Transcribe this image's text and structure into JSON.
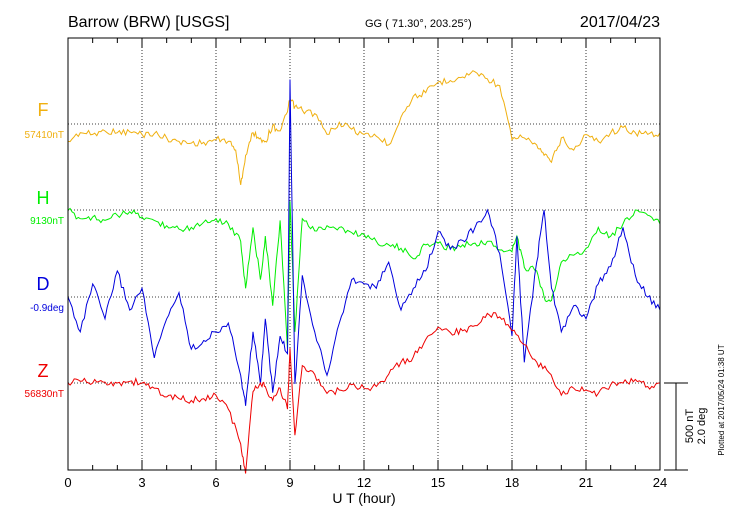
{
  "header": {
    "station": "Barrow (BRW)  [USGS]",
    "coords": "GG ( 71.30°, 203.25°)",
    "date": "2017/04/23"
  },
  "chart_data": {
    "type": "line",
    "xlabel": "U T (hour)",
    "xlim": [
      0,
      24
    ],
    "x_ticks": [
      "0",
      "3",
      "6",
      "9",
      "12",
      "15",
      "18",
      "21",
      "24"
    ],
    "grid": true,
    "scale_text": [
      "500 nT",
      "2.0 deg"
    ],
    "plotted_note": "Plotted at 2017/05/24 01:38 UT",
    "colors": {
      "F": "#f0b010",
      "H": "#00ee00",
      "D": "#0000dd",
      "Z": "#ee0000"
    },
    "series": [
      {
        "name": "F",
        "baseline": "57410nT",
        "x": [
          0,
          0.5,
          1,
          1.5,
          2,
          2.5,
          3,
          3.5,
          4,
          4.5,
          5,
          5.5,
          6,
          6.5,
          6.8,
          7,
          7.2,
          7.5,
          7.8,
          8,
          8.3,
          8.6,
          8.9,
          9,
          9.2,
          9.5,
          10,
          10.5,
          11,
          11.5,
          12,
          12.5,
          13,
          13.5,
          14,
          14.5,
          15,
          15.5,
          16,
          16.5,
          17,
          17.5,
          18,
          18.5,
          19,
          19.3,
          19.6,
          20,
          20.5,
          21,
          21.5,
          22,
          22.5,
          23,
          23.5,
          24
        ],
        "values": [
          -100,
          -50,
          -60,
          -40,
          -50,
          -45,
          -60,
          -55,
          -80,
          -100,
          -110,
          -105,
          -90,
          -100,
          -150,
          -350,
          -180,
          -50,
          -80,
          -100,
          -10,
          -40,
          70,
          140,
          100,
          80,
          60,
          -60,
          10,
          -30,
          -60,
          -70,
          -120,
          40,
          160,
          180,
          240,
          250,
          270,
          300,
          260,
          220,
          -90,
          -80,
          -120,
          -180,
          -220,
          -80,
          -150,
          -60,
          -100,
          -50,
          -20,
          -50,
          -60,
          -50
        ]
      },
      {
        "name": "H",
        "baseline": "9130nT",
        "x": [
          0,
          0.5,
          1,
          1.5,
          2,
          2.5,
          3,
          3.5,
          4,
          4.5,
          5,
          5.5,
          6,
          6.5,
          7,
          7.2,
          7.5,
          7.8,
          8,
          8.3,
          8.6,
          8.9,
          9,
          9.2,
          9.5,
          10,
          10.5,
          11,
          11.5,
          12,
          12.5,
          13,
          13.5,
          14,
          14.5,
          15,
          15.5,
          16,
          16.5,
          17,
          17.5,
          18,
          18.2,
          18.5,
          19,
          19.3,
          19.6,
          20,
          20.5,
          21,
          21.5,
          22,
          22.5,
          23,
          23.5,
          24
        ],
        "values": [
          0,
          -50,
          -40,
          -60,
          -30,
          -10,
          -40,
          -60,
          -90,
          -110,
          -100,
          -70,
          -50,
          -80,
          -180,
          -450,
          -100,
          -400,
          -150,
          -550,
          -60,
          -800,
          50,
          -700,
          -50,
          -120,
          -90,
          -100,
          -130,
          -140,
          -180,
          -200,
          -220,
          -280,
          -200,
          -190,
          -220,
          -200,
          -190,
          -180,
          -230,
          -240,
          -150,
          -330,
          -350,
          -500,
          -520,
          -300,
          -260,
          -220,
          -100,
          -150,
          -80,
          0,
          -30,
          -80
        ]
      },
      {
        "name": "D",
        "baseline": "-0.9deg",
        "x": [
          0,
          0.5,
          1,
          1.5,
          2,
          2.5,
          3,
          3.5,
          4,
          4.5,
          5,
          5.5,
          6,
          6.5,
          7,
          7.2,
          7.5,
          7.8,
          8,
          8.3,
          8.6,
          8.9,
          9,
          9.2,
          9.5,
          10,
          10.5,
          11,
          11.5,
          12,
          12.5,
          13,
          13.5,
          14,
          14.5,
          15,
          15.5,
          16,
          16.5,
          17,
          17.5,
          18,
          18.2,
          18.5,
          19,
          19.3,
          19.6,
          20,
          20.5,
          21,
          21.5,
          22,
          22.5,
          23,
          23.5,
          24
        ],
        "values": [
          0,
          -0.8,
          0.3,
          -0.5,
          0.6,
          -0.3,
          0.2,
          -1.4,
          -0.5,
          0.1,
          -1.2,
          -1.0,
          -0.8,
          -0.6,
          -1.8,
          -2.5,
          -0.8,
          -2.0,
          -0.5,
          -2.2,
          -0.9,
          -1.3,
          5.0,
          -2.0,
          0.5,
          -0.8,
          -1.8,
          -0.6,
          0.4,
          0.3,
          0.2,
          0.8,
          -0.3,
          0.2,
          0.6,
          1.5,
          1.1,
          1.3,
          1.6,
          2.0,
          1.0,
          -0.9,
          1.4,
          -1.5,
          0.8,
          2.0,
          0.2,
          -0.8,
          -0.2,
          -0.5,
          0.3,
          0.7,
          1.6,
          0.5,
          0.0,
          -0.3
        ]
      },
      {
        "name": "Z",
        "baseline": "56830nT",
        "x": [
          0,
          0.5,
          1,
          1.5,
          2,
          2.5,
          3,
          3.5,
          4,
          4.5,
          5,
          5.5,
          6,
          6.5,
          7,
          7.2,
          7.5,
          7.8,
          8,
          8.3,
          8.6,
          8.9,
          9,
          9.2,
          9.5,
          10,
          10.5,
          11,
          11.5,
          12,
          12.5,
          13,
          13.5,
          14,
          14.5,
          15,
          15.5,
          16,
          16.5,
          17,
          17.5,
          18,
          18.5,
          19,
          19.5,
          20,
          20.5,
          21,
          21.5,
          22,
          22.5,
          23,
          23.5,
          24
        ],
        "values": [
          0,
          10,
          0,
          5,
          0,
          10,
          0,
          -30,
          -80,
          -90,
          -100,
          -90,
          -70,
          -150,
          -350,
          -520,
          -50,
          0,
          -20,
          -100,
          -30,
          -150,
          200,
          -300,
          100,
          50,
          -60,
          -40,
          -10,
          -30,
          -20,
          50,
          120,
          150,
          250,
          320,
          290,
          300,
          330,
          400,
          380,
          300,
          220,
          120,
          60,
          -70,
          -30,
          -40,
          -60,
          -10,
          0,
          20,
          -20,
          0
        ]
      }
    ]
  }
}
